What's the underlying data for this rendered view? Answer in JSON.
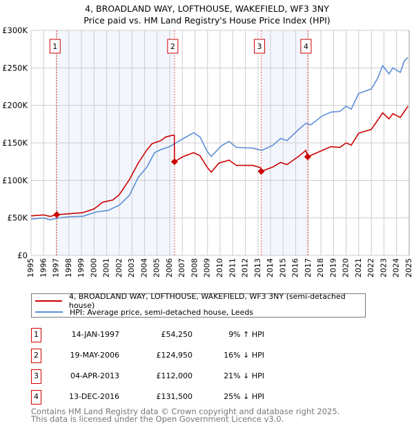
{
  "chart_data": {
    "type": "line",
    "title": "4, BROADLAND WAY, LOFTHOUSE, WAKEFIELD, WF3 3NY",
    "subtitle": "Price paid vs. HM Land Registry's House Price Index (HPI)",
    "xlim": [
      1995,
      2025
    ],
    "ylim": [
      0,
      300000
    ],
    "y_ticks": [
      0,
      50000,
      100000,
      150000,
      200000,
      250000,
      300000
    ],
    "y_tick_labels": [
      "£0",
      "£50K",
      "£100K",
      "£150K",
      "£200K",
      "£250K",
      "£300K"
    ],
    "x_ticks": [
      "1995",
      "1996",
      "1997",
      "1998",
      "1999",
      "2000",
      "2001",
      "2002",
      "2003",
      "2004",
      "2005",
      "2006",
      "2007",
      "2008",
      "2009",
      "2010",
      "2011",
      "2012",
      "2013",
      "2014",
      "2015",
      "2016",
      "2017",
      "2018",
      "2019",
      "2020",
      "2021",
      "2022",
      "2023",
      "2024",
      "2025"
    ],
    "grid": true,
    "series": [
      {
        "name": "4, BROADLAND WAY, LOFTHOUSE, WAKEFIELD, WF3 3NY (semi-detached house)",
        "color": "#cc0000",
        "points": [
          [
            1995.0,
            52700
          ],
          [
            1996.0,
            54000
          ],
          [
            1996.5,
            52000
          ],
          [
            1997.04,
            54250
          ],
          [
            1998.0,
            55500
          ],
          [
            1999.1,
            57000
          ],
          [
            2000.0,
            62000
          ],
          [
            2000.7,
            71000
          ],
          [
            2001.5,
            74000
          ],
          [
            2002.0,
            81000
          ],
          [
            2002.8,
            101000
          ],
          [
            2003.5,
            123000
          ],
          [
            2004.2,
            141000
          ],
          [
            2004.6,
            149000
          ],
          [
            2005.3,
            153000
          ],
          [
            2005.7,
            158000
          ],
          [
            2006.2,
            160000
          ],
          [
            2006.37,
            160000
          ],
          [
            2006.38,
            124950
          ],
          [
            2007.1,
            132000
          ],
          [
            2007.9,
            137000
          ],
          [
            2008.4,
            133000
          ],
          [
            2009.0,
            117000
          ],
          [
            2009.3,
            111000
          ],
          [
            2009.9,
            123000
          ],
          [
            2010.7,
            127000
          ],
          [
            2011.3,
            120000
          ],
          [
            2012.6,
            120000
          ],
          [
            2013.2,
            117000
          ],
          [
            2013.26,
            112000
          ],
          [
            2014.2,
            118000
          ],
          [
            2014.8,
            124000
          ],
          [
            2015.3,
            121000
          ],
          [
            2016.3,
            133000
          ],
          [
            2016.8,
            140000
          ],
          [
            2016.95,
            131500
          ],
          [
            2018.1,
            140000
          ],
          [
            2018.8,
            145000
          ],
          [
            2019.5,
            144000
          ],
          [
            2020.0,
            150000
          ],
          [
            2020.4,
            147000
          ],
          [
            2021.0,
            163000
          ],
          [
            2022.0,
            168000
          ],
          [
            2022.9,
            190000
          ],
          [
            2023.4,
            182000
          ],
          [
            2023.7,
            189000
          ],
          [
            2024.3,
            184000
          ],
          [
            2024.9,
            199000
          ]
        ]
      },
      {
        "name": "HPI: Average price, semi-detached house, Leeds",
        "color": "#5b8ed6",
        "points": [
          [
            1995.0,
            48500
          ],
          [
            1996.0,
            50000
          ],
          [
            1996.5,
            47500
          ],
          [
            1997.1,
            49700
          ],
          [
            1998.0,
            51500
          ],
          [
            1999.1,
            52200
          ],
          [
            2000.2,
            58000
          ],
          [
            2001.1,
            60000
          ],
          [
            2002.0,
            67000
          ],
          [
            2002.8,
            80000
          ],
          [
            2003.5,
            104000
          ],
          [
            2004.2,
            118000
          ],
          [
            2004.8,
            137000
          ],
          [
            2005.3,
            141000
          ],
          [
            2006.0,
            145000
          ],
          [
            2006.4,
            149000
          ],
          [
            2007.1,
            156000
          ],
          [
            2007.9,
            163500
          ],
          [
            2008.4,
            158000
          ],
          [
            2009.0,
            138000
          ],
          [
            2009.3,
            132000
          ],
          [
            2010.1,
            146000
          ],
          [
            2010.7,
            152000
          ],
          [
            2011.3,
            144000
          ],
          [
            2012.6,
            143000
          ],
          [
            2013.3,
            140000
          ],
          [
            2014.2,
            147000
          ],
          [
            2014.8,
            156000
          ],
          [
            2015.3,
            153000
          ],
          [
            2016.3,
            169000
          ],
          [
            2016.8,
            176000
          ],
          [
            2017.2,
            174000
          ],
          [
            2018.1,
            186000
          ],
          [
            2018.8,
            191000
          ],
          [
            2019.5,
            192000
          ],
          [
            2020.0,
            199000
          ],
          [
            2020.4,
            195000
          ],
          [
            2021.0,
            216000
          ],
          [
            2022.0,
            222000
          ],
          [
            2022.5,
            236000
          ],
          [
            2022.9,
            253000
          ],
          [
            2023.4,
            242000
          ],
          [
            2023.7,
            250000
          ],
          [
            2024.3,
            244000
          ],
          [
            2024.6,
            259000
          ],
          [
            2024.9,
            264000
          ]
        ]
      }
    ],
    "sales": [
      {
        "label": "1",
        "year": 1997.04,
        "price": 54250
      },
      {
        "label": "2",
        "year": 2006.38,
        "price": 124950
      },
      {
        "label": "3",
        "year": 2013.26,
        "price": 112000
      },
      {
        "label": "4",
        "year": 2016.95,
        "price": 131500
      }
    ],
    "shaded_periods": [
      [
        1997.04,
        2006.38
      ],
      [
        2013.26,
        2016.95
      ]
    ],
    "legend_placement": "bottom"
  },
  "legend": [
    {
      "label": "4, BROADLAND WAY, LOFTHOUSE, WAKEFIELD, WF3 3NY (semi-detached house)",
      "color": "#cc0000"
    },
    {
      "label": "HPI: Average price, semi-detached house, Leeds",
      "color": "#5b8ed6"
    }
  ],
  "transactions": [
    {
      "num": "1",
      "date": "14-JAN-1997",
      "price": "£54,250",
      "hpi": "9% ↑ HPI"
    },
    {
      "num": "2",
      "date": "19-MAY-2006",
      "price": "£124,950",
      "hpi": "16% ↓ HPI"
    },
    {
      "num": "3",
      "date": "04-APR-2013",
      "price": "£112,000",
      "hpi": "21% ↓ HPI"
    },
    {
      "num": "4",
      "date": "13-DEC-2016",
      "price": "£131,500",
      "hpi": "25% ↓ HPI"
    }
  ],
  "footer": {
    "line1": "Contains HM Land Registry data © Crown copyright and database right 2025.",
    "line2": "This data is licensed under the Open Government Licence v3.0."
  }
}
